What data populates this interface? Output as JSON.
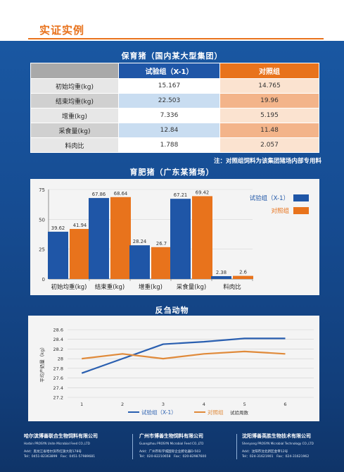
{
  "header": {
    "title": "实证实例"
  },
  "table_section": {
    "title": "保育猪（国内某大型集团）",
    "col_a": "试验组（X-1）",
    "col_b": "对照组",
    "rows": [
      {
        "label": "初始均重(kg)",
        "a": "15.167",
        "b": "14.765"
      },
      {
        "label": "结束均重(kg)",
        "a": "22.503",
        "b": "19.96"
      },
      {
        "label": "增重(kg)",
        "a": "7.336",
        "b": "5.195"
      },
      {
        "label": "采食量(kg)",
        "a": "12.84",
        "b": "11.48"
      },
      {
        "label": "料肉比",
        "a": "1.788",
        "b": "2.057"
      }
    ],
    "note": "注：对照组饲料为该集团猪场内部专用料"
  },
  "fattening_section": {
    "title": "育肥猪（广东某猪场）"
  },
  "ruminant_section": {
    "title": "反刍动物"
  },
  "chart_data": [
    {
      "type": "bar",
      "categories": [
        "初始均重(kg)",
        "结束重(kg)",
        "增重(kg)",
        "采食量(kg)",
        "料肉比"
      ],
      "series": [
        {
          "name": "试验组（X-1）",
          "color": "#1f56a7",
          "values": [
            39.62,
            67.86,
            28.24,
            67.21,
            2.38
          ]
        },
        {
          "name": "对照组",
          "color": "#e8731c",
          "values": [
            41.94,
            68.64,
            26.7,
            69.42,
            2.6
          ]
        }
      ],
      "value_labels": [
        [
          "39.62",
          "67.86",
          "28.24",
          "67.21",
          "2.38"
        ],
        [
          "41.94",
          "68.64",
          "26.7",
          "69.42",
          "2.6"
        ]
      ],
      "ylim": [
        0,
        75
      ],
      "yticks": [
        "0",
        "25",
        "50",
        "75"
      ],
      "legend": "top-right"
    },
    {
      "type": "line",
      "x": [
        1,
        2,
        3,
        4,
        5,
        6
      ],
      "xticks": [
        "1",
        "2",
        "3",
        "4",
        "5",
        "6"
      ],
      "xlabel": "试验周数",
      "ylabel": "平均产奶量（kg）",
      "ylim": [
        27.2,
        28.6
      ],
      "yticks": [
        "27.2",
        "27.4",
        "27.6",
        "27.8",
        "28",
        "28.2",
        "28.4",
        "28.6"
      ],
      "series": [
        {
          "name": "试验组（X-1）",
          "color": "#2a5fb0",
          "values": [
            27.7,
            28.0,
            28.3,
            28.35,
            28.42,
            28.42
          ]
        },
        {
          "name": "对照组",
          "color": "#e08a3a",
          "values": [
            28.0,
            28.1,
            28.0,
            28.1,
            28.15,
            28.1
          ]
        }
      ],
      "legend": "bottom"
    }
  ],
  "footer": [
    {
      "cn": "哈尔滨博善联合生物饲料有限公司",
      "en": "Harbin PROSYN Unite Microbial Feed CO.,LTD",
      "addr": "Add：黑龙江省哈尔滨市红旗大街178号",
      "tel": "Tel：0451-82363899　Fax：0451-57989681"
    },
    {
      "cn": "广州市博善生物饲料有限公司",
      "en": "Guangzhou PROSYN Microbial Feed CO.,LTD",
      "addr": "Add：广州市科学城国际企业孵化器D-503",
      "tel": "Tel：020-82210658　Fax：020-82987600"
    },
    {
      "cn": "沈阳博善英胜生物技术有限公司",
      "en": "Shenyang PROSYN Microbial Technology CO.,LTD",
      "addr": "Add：沈阳市沈北新区金帝12号",
      "tel": "Tel：024-31621901　Fax：024-31621962"
    }
  ]
}
